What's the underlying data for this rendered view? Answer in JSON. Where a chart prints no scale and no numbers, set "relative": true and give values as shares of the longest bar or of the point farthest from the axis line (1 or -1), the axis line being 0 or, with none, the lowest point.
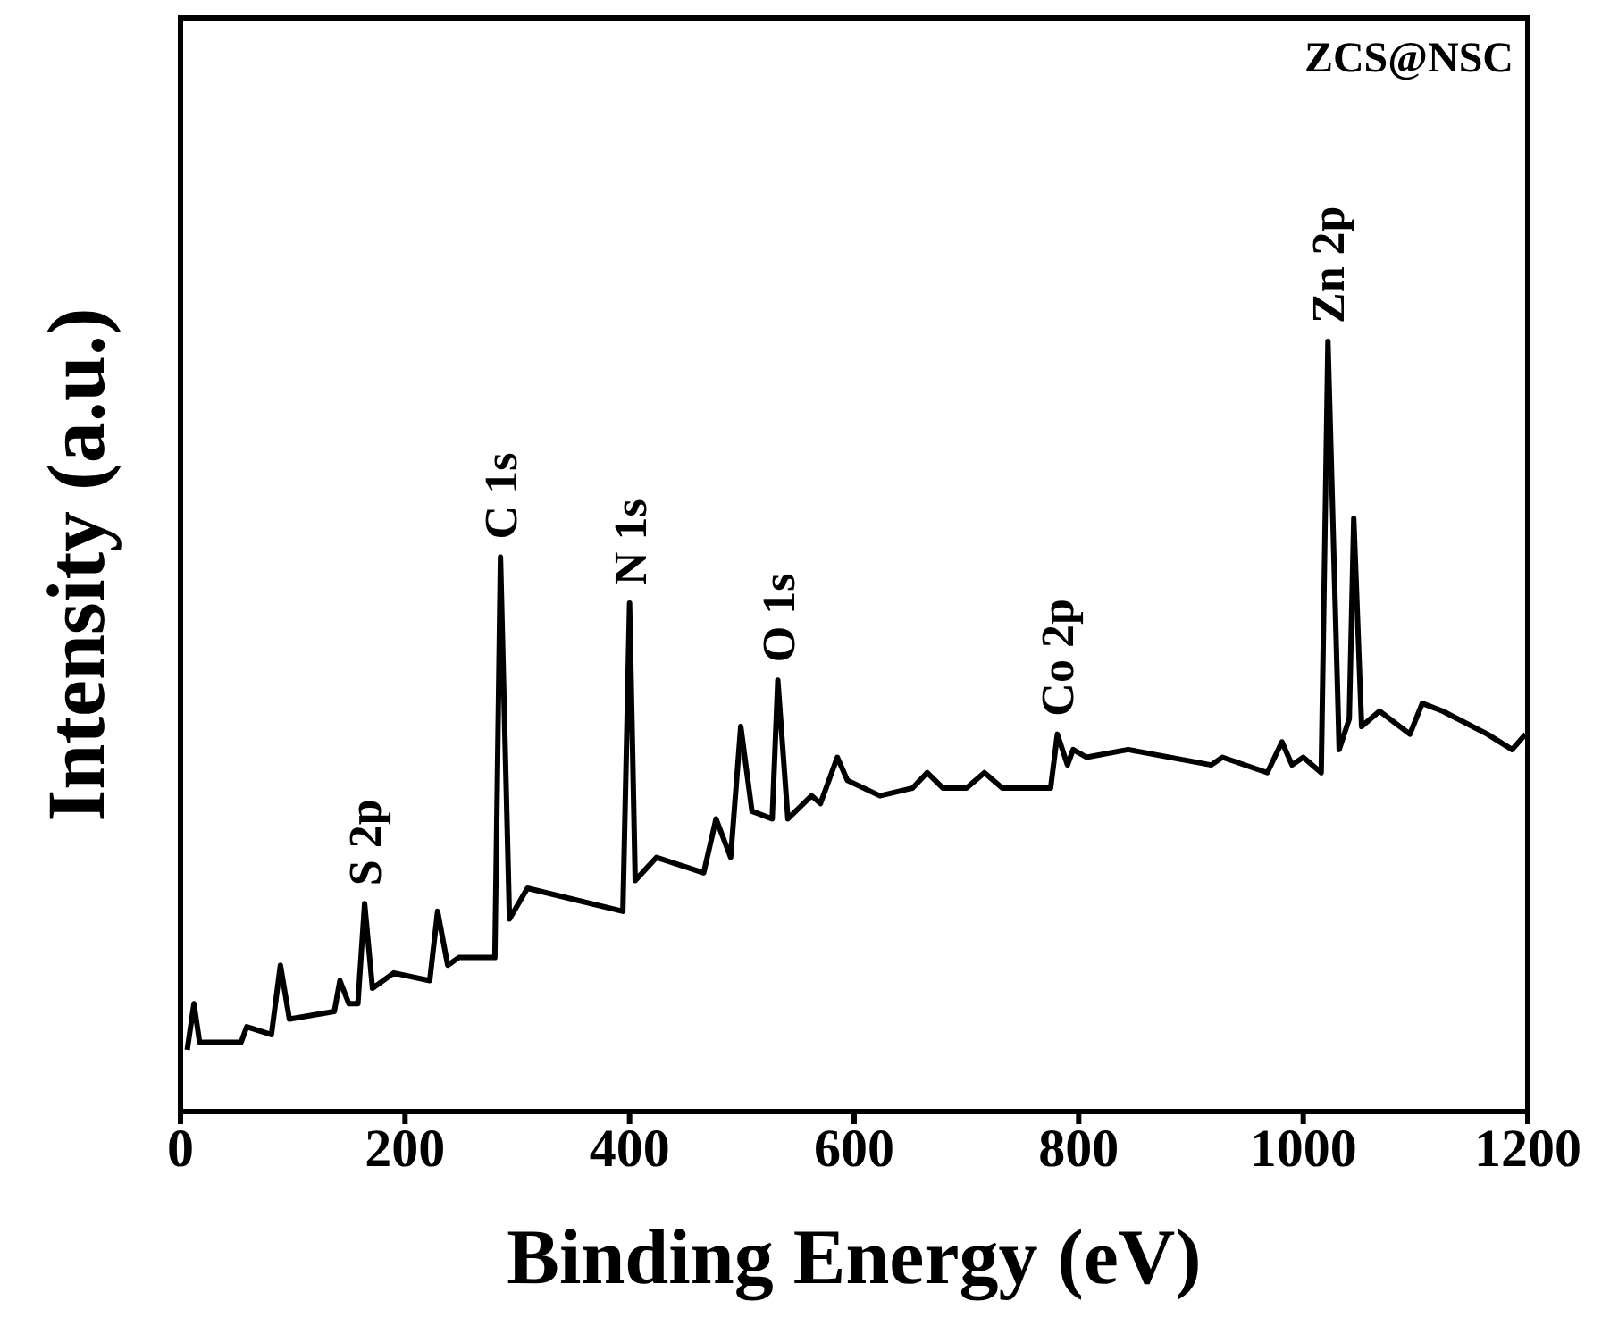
{
  "chart_data": {
    "type": "line",
    "xlabel": "Binding Energy (eV)",
    "ylabel": "Intensity (a.u.)",
    "relative": true,
    "xlim": [
      0,
      1200
    ],
    "xticks": [
      0,
      200,
      400,
      600,
      800,
      1000,
      1200
    ],
    "grid": false,
    "legend": false,
    "marker": "none",
    "line_style": "solid",
    "annotations": [
      "ZCS@NSC",
      {
        "text": "S 2p",
        "x": 164,
        "y": 0.27
      },
      {
        "text": "C 1s",
        "x": 285,
        "y": 0.72
      },
      {
        "text": "N 1s",
        "x": 400,
        "y": 0.66
      },
      {
        "text": "O 1s",
        "x": 532,
        "y": 0.56
      },
      {
        "text": "Co 2p",
        "x": 781,
        "y": 0.49
      },
      {
        "text": "Zn 2p",
        "x": 1022,
        "y": 1
      }
    ],
    "series": [
      {
        "color": "#000000",
        "x": [
          6,
          12,
          17,
          54,
          59,
          81,
          89,
          97,
          137,
          142,
          150,
          158,
          164,
          171,
          190,
          222,
          229,
          238,
          248,
          280,
          285,
          293,
          309,
          394,
          400,
          405,
          424,
          466,
          477,
          490,
          499,
          509,
          527,
          532,
          541,
          562,
          570,
          585,
          594,
          623,
          652,
          665,
          679,
          700,
          716,
          732,
          775,
          781,
          790,
          795,
          807,
          844,
          918,
          928,
          968,
          981,
          990,
          1000,
          1016,
          1022,
          1032,
          1041,
          1045,
          1052,
          1068,
          1095,
          1106,
          1124,
          1164,
          1186,
          1198
        ],
        "values": [
          0.08,
          0.14,
          0.09,
          0.09,
          0.11,
          0.1,
          0.19,
          0.12,
          0.13,
          0.17,
          0.14,
          0.14,
          0.27,
          0.16,
          0.18,
          0.17,
          0.26,
          0.19,
          0.2,
          0.2,
          0.72,
          0.25,
          0.29,
          0.26,
          0.66,
          0.3,
          0.33,
          0.31,
          0.38,
          0.33,
          0.5,
          0.39,
          0.38,
          0.56,
          0.38,
          0.41,
          0.4,
          0.46,
          0.43,
          0.41,
          0.42,
          0.44,
          0.42,
          0.42,
          0.44,
          0.42,
          0.42,
          0.49,
          0.45,
          0.47,
          0.46,
          0.47,
          0.45,
          0.46,
          0.44,
          0.48,
          0.45,
          0.46,
          0.44,
          1,
          0.47,
          0.51,
          0.77,
          0.5,
          0.52,
          0.49,
          0.53,
          0.52,
          0.49,
          0.47,
          0.49
        ]
      }
    ]
  }
}
